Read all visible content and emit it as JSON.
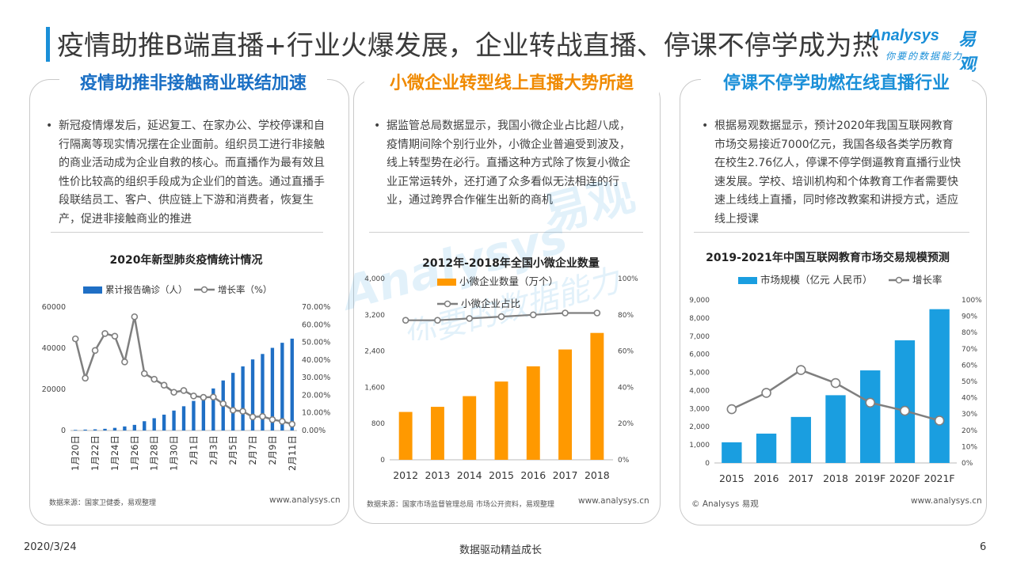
{
  "header": {
    "title": "疫情助推B端直播+行业火爆发展，企业转战直播、停课不停学成为热",
    "logo_en": "Analysys",
    "logo_cn": "易观",
    "logo_tag": "你要的数据能力"
  },
  "watermark": {
    "en": "Analysys",
    "cn": "易观",
    "tag": "你要的数据能力"
  },
  "panels": [
    {
      "heading": "疫情助推非接触商业联结加速",
      "heading_color": "#1a6fc4",
      "bullet": "新冠疫情爆发后，延迟复工、在家办公、学校停课和自行隔离等现实情况摆在企业面前。组织员工进行非接触的商业活动成为企业自救的核心。而直播作为最有效且性价比较高的组织手段成为企业们的首选。通过直播手段联结员工、客户、供应链上下游和消费者，恢复生产，促进非接触商业的推进",
      "source": "数据来源：国家卫健委，易观整理",
      "site": "www.analysys.cn"
    },
    {
      "heading": "小微企业转型线上直播大势所趋",
      "heading_color": "#f08a00",
      "bullet": "据监管总局数据显示，我国小微企业占比超八成，疫情期间除个别行业外，小微企业普遍受到波及，线上转型势在必行。直播这种方式除了恢复小微企业正常运转外，还打通了众多看似无法相连的行业，通过跨界合作催生出新的商机",
      "source": "数据来源：国家市场监督管理总局 市场公开资料，易观整理",
      "site": "www.analysys.cn"
    },
    {
      "heading": "停课不停学助燃在线直播行业",
      "heading_color": "#1a8fd8",
      "bullet": "根据易观数据显示，预计2020年我国互联网教育市场交易接近7000亿元，我国各级各类学历教育在校生2.76亿人，停课不停学倒逼教育直播行业快速发展。学校、培训机构和个体教育工作者需要快速上线线上直播，同时修改教案和讲授方式，适应线上授课",
      "source": "© Analysys 易观",
      "site": "www.analysys.cn"
    }
  ],
  "chart_data": [
    {
      "type": "bar+line",
      "title": "2020年新型肺炎疫情统计情况",
      "categories": [
        "1月20日",
        "1月21日",
        "1月22日",
        "1月23日",
        "1月24日",
        "1月25日",
        "1月26日",
        "1月27日",
        "1月28日",
        "1月29日",
        "1月30日",
        "1月31日",
        "2月1日",
        "2月2日",
        "2月3日",
        "2月4日",
        "2月5日",
        "2月6日",
        "2月7日",
        "2月8日",
        "2月9日",
        "2月10日",
        "2月11日"
      ],
      "tick_labels": [
        "1月20日",
        "1月22日",
        "1月24日",
        "1月26日",
        "1月28日",
        "1月30日",
        "2月1日",
        "2月3日",
        "2月5日",
        "2月7日",
        "2月9日",
        "2月11日"
      ],
      "series": [
        {
          "name": "累计报告确诊（人）",
          "axis": "left",
          "color": "#1f6fc5",
          "values": [
            291,
            440,
            571,
            830,
            1287,
            1975,
            2744,
            4515,
            5974,
            7711,
            9692,
            11791,
            14380,
            17205,
            20438,
            24324,
            28018,
            31161,
            34546,
            37198,
            40171,
            42638,
            44653
          ]
        },
        {
          "name": "增长率（%）",
          "axis": "right",
          "color": "#7f7f7f",
          "values": [
            0.52,
            0.297,
            0.454,
            0.55,
            0.535,
            0.389,
            0.645,
            0.323,
            0.291,
            0.257,
            0.217,
            0.227,
            0.196,
            0.188,
            0.19,
            0.152,
            0.115,
            0.109,
            0.077,
            0.08,
            0.062,
            0.052,
            0.036
          ]
        }
      ],
      "y_left": {
        "range": [
          0,
          60000
        ],
        "ticks": [
          "0",
          "20000",
          "40000",
          "60000"
        ]
      },
      "y_right": {
        "range": [
          0,
          0.7
        ],
        "ticks": [
          "0.00%",
          "10.00%",
          "20.00%",
          "30.00%",
          "40.00%",
          "50.00%",
          "60.00%",
          "70.00%"
        ]
      }
    },
    {
      "type": "bar+line",
      "title": "2012年-2018年全国小微企业数量",
      "categories": [
        "2012",
        "2013",
        "2014",
        "2015",
        "2016",
        "2017",
        "2018"
      ],
      "series": [
        {
          "name": "小微企业数量（万个）",
          "axis": "left",
          "color": "#ff9900",
          "values": [
            1056,
            1169,
            1405,
            1727,
            2063,
            2435,
            2800
          ]
        },
        {
          "name": "小微企业占比",
          "axis": "right",
          "color": "#7f7f7f",
          "values": [
            0.77,
            0.77,
            0.78,
            0.79,
            0.8,
            0.81,
            0.81
          ]
        }
      ],
      "y_left": {
        "range": [
          0,
          4000
        ],
        "ticks": [
          "0",
          "800",
          "1,600",
          "2,400",
          "3,200",
          "4,000"
        ]
      },
      "y_right": {
        "range": [
          0,
          1
        ],
        "ticks": [
          "0%",
          "20%",
          "40%",
          "60%",
          "80%",
          "100%"
        ]
      }
    },
    {
      "type": "bar+line",
      "title": "2019-2021年中国互联网教育市场交易规模预测",
      "categories": [
        "2015",
        "2016",
        "2017",
        "2018",
        "2019F",
        "2020F",
        "2021F"
      ],
      "series": [
        {
          "name": "市场规模（亿元 人民币）",
          "axis": "left",
          "color": "#1a9ee0",
          "values": [
            1140,
            1620,
            2540,
            3740,
            5110,
            6770,
            8490
          ]
        },
        {
          "name": "增长率",
          "axis": "right",
          "color": "#7f7f7f",
          "values": [
            0.33,
            0.43,
            0.57,
            0.49,
            0.37,
            0.32,
            0.26
          ]
        }
      ],
      "y_left": {
        "range": [
          0,
          9000
        ],
        "ticks": [
          "0",
          "1,000",
          "2,000",
          "3,000",
          "4,000",
          "5,000",
          "6,000",
          "7,000",
          "8,000",
          "9,000"
        ]
      },
      "y_right": {
        "range": [
          0,
          1
        ],
        "ticks": [
          "0%",
          "10%",
          "20%",
          "30%",
          "40%",
          "50%",
          "60%",
          "70%",
          "80%",
          "90%",
          "100%"
        ]
      }
    }
  ],
  "footer": {
    "date": "2020/3/24",
    "slogan": "数据驱动精益成长",
    "page": "6"
  }
}
